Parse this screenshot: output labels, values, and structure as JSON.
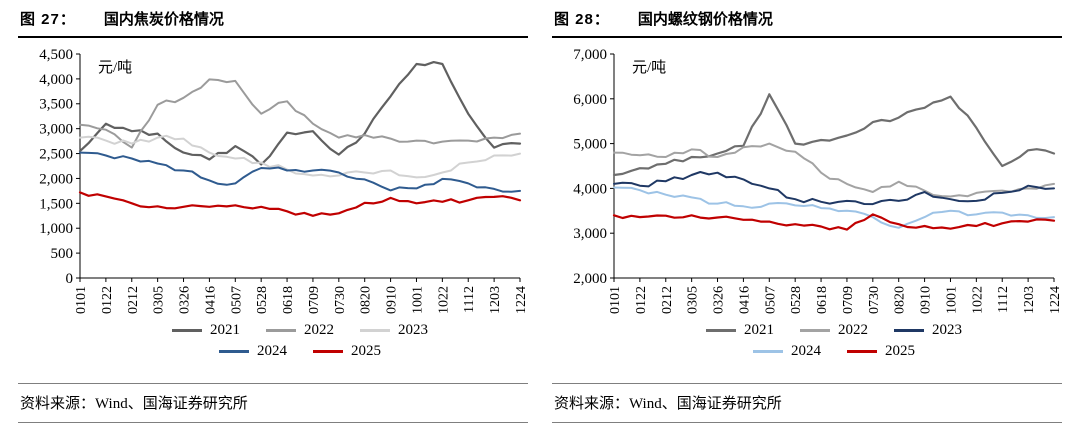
{
  "chart_data": [
    {
      "type": "line",
      "figure_label": "图 27：",
      "title": "国内焦炭价格情况",
      "unit_label": "元/吨",
      "source": "资料来源：Wind、国海证券研究所",
      "ylim": [
        0,
        4500
      ],
      "ytick_step": 500,
      "grid": false,
      "legend_position": "bottom",
      "categories": [
        "0101",
        "0122",
        "0212",
        "0305",
        "0326",
        "0416",
        "0507",
        "0528",
        "0618",
        "0709",
        "0730",
        "0820",
        "0910",
        "1001",
        "1022",
        "1112",
        "1203",
        "1224"
      ],
      "series": [
        {
          "name": "2021",
          "color": "#606060",
          "width": 2.2,
          "values": [
            2550,
            3100,
            2950,
            2900,
            2520,
            2380,
            2650,
            2280,
            2920,
            2950,
            2480,
            2900,
            3650,
            4300,
            4300,
            3300,
            2620,
            2700
          ]
        },
        {
          "name": "2022",
          "color": "#9b9b9b",
          "width": 2,
          "values": [
            3080,
            2980,
            2620,
            3480,
            3620,
            3990,
            3960,
            3300,
            3550,
            3100,
            2820,
            2870,
            2800,
            2760,
            2740,
            2760,
            2820,
            2900
          ]
        },
        {
          "name": "2023",
          "color": "#d2d2d2",
          "width": 2,
          "values": [
            2820,
            2760,
            2700,
            2820,
            2800,
            2520,
            2400,
            2320,
            2180,
            2060,
            2060,
            2120,
            2160,
            2020,
            2120,
            2320,
            2460,
            2500
          ]
        },
        {
          "name": "2024",
          "color": "#2f5b8f",
          "width": 2,
          "values": [
            2520,
            2460,
            2400,
            2300,
            2160,
            1960,
            1900,
            2210,
            2160,
            2160,
            2120,
            1980,
            1760,
            1800,
            1990,
            1900,
            1790,
            1750
          ]
        },
        {
          "name": "2025",
          "color": "#c00000",
          "width": 2.2,
          "values": [
            1720,
            1640,
            1500,
            1440,
            1430,
            1430,
            1460,
            1430,
            1340,
            1250,
            1300,
            1510,
            1610,
            1500,
            1530,
            1560,
            1630,
            1560
          ]
        }
      ]
    },
    {
      "type": "line",
      "figure_label": "图 28：",
      "title": "国内螺纹钢价格情况",
      "unit_label": "元/吨",
      "source": "资料来源：Wind、国海证券研究所",
      "ylim": [
        2000,
        7000
      ],
      "ytick_step": 1000,
      "grid": false,
      "legend_position": "bottom",
      "categories": [
        "0101",
        "0122",
        "0212",
        "0305",
        "0326",
        "0416",
        "0507",
        "0528",
        "0618",
        "0709",
        "0730",
        "0820",
        "0910",
        "1001",
        "1022",
        "1112",
        "1203",
        "1224"
      ],
      "series": [
        {
          "name": "2021",
          "color": "#6e6e6e",
          "width": 2.2,
          "values": [
            4300,
            4450,
            4550,
            4700,
            4780,
            4950,
            6100,
            5000,
            5080,
            5180,
            5480,
            5580,
            5800,
            6050,
            5350,
            4500,
            4850,
            4780
          ]
        },
        {
          "name": "2022",
          "color": "#a3a3a3",
          "width": 2,
          "values": [
            4800,
            4740,
            4700,
            4870,
            4700,
            4920,
            5000,
            4820,
            4350,
            4100,
            3920,
            4150,
            3950,
            3820,
            3900,
            3950,
            4000,
            4100
          ]
        },
        {
          "name": "2023",
          "color": "#1f3864",
          "width": 2,
          "values": [
            4100,
            4060,
            4160,
            4300,
            4350,
            4200,
            4000,
            3760,
            3700,
            3720,
            3650,
            3720,
            3920,
            3760,
            3720,
            3900,
            4060,
            4000
          ]
        },
        {
          "name": "2024",
          "color": "#9dc3e6",
          "width": 2,
          "values": [
            4020,
            3960,
            3860,
            3800,
            3660,
            3600,
            3660,
            3620,
            3560,
            3500,
            3360,
            3120,
            3360,
            3500,
            3420,
            3460,
            3400,
            3360
          ]
        },
        {
          "name": "2025",
          "color": "#c00000",
          "width": 2.2,
          "values": [
            3400,
            3360,
            3390,
            3400,
            3350,
            3300,
            3260,
            3200,
            3150,
            3080,
            3420,
            3200,
            3160,
            3100,
            3160,
            3220,
            3260,
            3280
          ]
        }
      ]
    }
  ]
}
